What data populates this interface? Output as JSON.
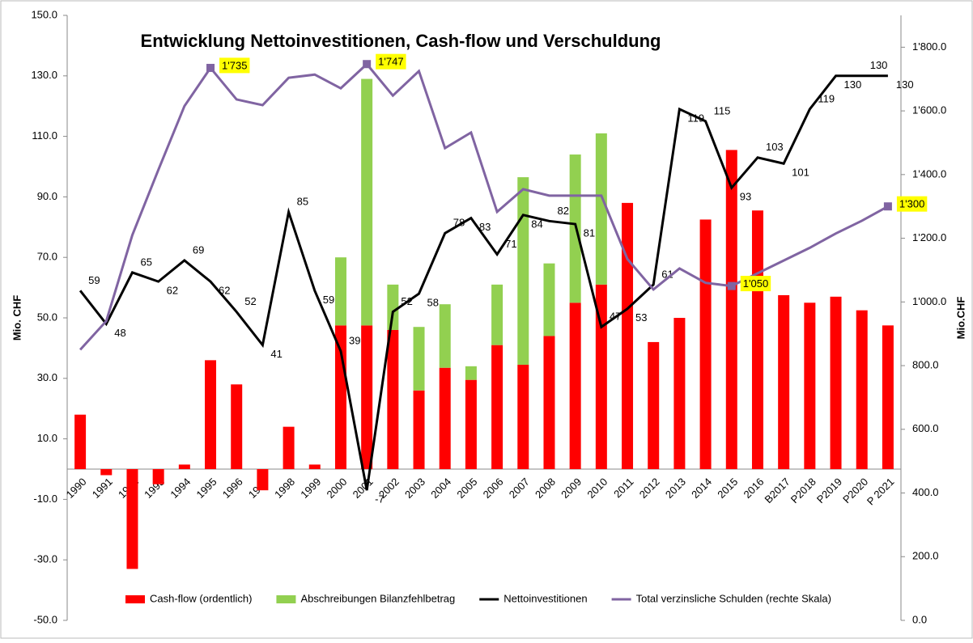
{
  "chart_data": {
    "type": "bar-line",
    "title": "Entwicklung Nettoinvestitionen, Cash-flow und Verschuldung",
    "y_label": "Mio. CHF",
    "y2_label": "Mio.CHF",
    "categories": [
      "1990",
      "1991",
      "1992",
      "1993",
      "1994",
      "1995",
      "1996",
      "1997",
      "1998",
      "1999",
      "2000",
      "2001",
      "2002",
      "2003",
      "2004",
      "2005",
      "2006",
      "2007",
      "2008",
      "2009",
      "2010",
      "2011",
      "2012",
      "2013",
      "2014",
      "2015",
      "2016",
      "B2017",
      "P2018",
      "P2019",
      "P2020",
      "P 2021"
    ],
    "ylim": [
      -50,
      150
    ],
    "yticks": [
      {
        "value": -50,
        "label": "-50.0"
      },
      {
        "value": -30,
        "label": "-30.0"
      },
      {
        "value": -10,
        "label": "-10.0"
      },
      {
        "value": 10,
        "label": "10.0"
      },
      {
        "value": 30,
        "label": "30.0"
      },
      {
        "value": 50,
        "label": "50.0"
      },
      {
        "value": 70,
        "label": "70.0"
      },
      {
        "value": 90,
        "label": "90.0"
      },
      {
        "value": 110,
        "label": "110.0"
      },
      {
        "value": 130,
        "label": "130.0"
      },
      {
        "value": 150,
        "label": "150.0"
      }
    ],
    "y2lim": [
      0,
      1900
    ],
    "y2ticks": [
      {
        "value": 0,
        "label": "0.0"
      },
      {
        "value": 200,
        "label": "200.0"
      },
      {
        "value": 400,
        "label": "400.0"
      },
      {
        "value": 600,
        "label": "600.0"
      },
      {
        "value": 800,
        "label": "800.0"
      },
      {
        "value": 1000,
        "label": "1'000.0"
      },
      {
        "value": 1200,
        "label": "1'200.0"
      },
      {
        "value": 1400,
        "label": "1'400.0"
      },
      {
        "value": 1600,
        "label": "1'600.0"
      },
      {
        "value": 1800,
        "label": "1'800.0"
      }
    ],
    "legend": "bottom",
    "series": [
      {
        "name": "Cash-flow (ordentlich)",
        "kind": "bar",
        "color": "#ff0000",
        "values": [
          18,
          -2,
          -33,
          -5,
          1.5,
          36,
          28,
          -7,
          14,
          1.5,
          47.5,
          47.5,
          46,
          26,
          33.5,
          29.5,
          41,
          34.5,
          44,
          55,
          61,
          88,
          42,
          50,
          82.5,
          105.5,
          85.5,
          57.5,
          55,
          57,
          52.5,
          47.5
        ]
      },
      {
        "name": "Abschreibungen Bilanzfehlbetrag",
        "kind": "bar",
        "color": "#92d050",
        "values": [
          null,
          null,
          null,
          null,
          null,
          null,
          null,
          null,
          null,
          null,
          22.5,
          81.5,
          15,
          21,
          21,
          4.5,
          20,
          62,
          24,
          49,
          50,
          null,
          null,
          null,
          null,
          null,
          null,
          null,
          null,
          null,
          null,
          null
        ]
      },
      {
        "name": "Nettoinvestitionen",
        "kind": "line",
        "color": "#000000",
        "values": [
          59,
          48,
          65,
          62,
          69,
          62,
          52,
          41,
          85,
          59,
          39,
          -7,
          52,
          58,
          78,
          83,
          71,
          84,
          82,
          81,
          47,
          53,
          61,
          119,
          115,
          93,
          103,
          101,
          119,
          130,
          130,
          130
        ]
      },
      {
        "name": "Total verzinsliche Schulden (rechte Skala)",
        "kind": "line",
        "axis": "y2",
        "color": "#8064a2",
        "values": [
          850,
          940,
          1210,
          1415,
          1615,
          1735,
          1636,
          1618,
          1704,
          1714,
          1671,
          1747,
          1648,
          1725,
          1483,
          1532,
          1283,
          1354,
          1334,
          1334,
          1334,
          1135,
          1039,
          1105,
          1060,
          1050,
          1090,
          1130,
          1170,
          1215,
          1255,
          1300
        ],
        "value_labels": [
          null,
          null,
          null,
          null,
          null,
          "1'735",
          null,
          null,
          null,
          null,
          null,
          "1'747",
          null,
          null,
          null,
          null,
          null,
          null,
          null,
          null,
          null,
          null,
          null,
          null,
          null,
          "1'050",
          null,
          null,
          null,
          null,
          null,
          "1'300"
        ]
      }
    ]
  }
}
